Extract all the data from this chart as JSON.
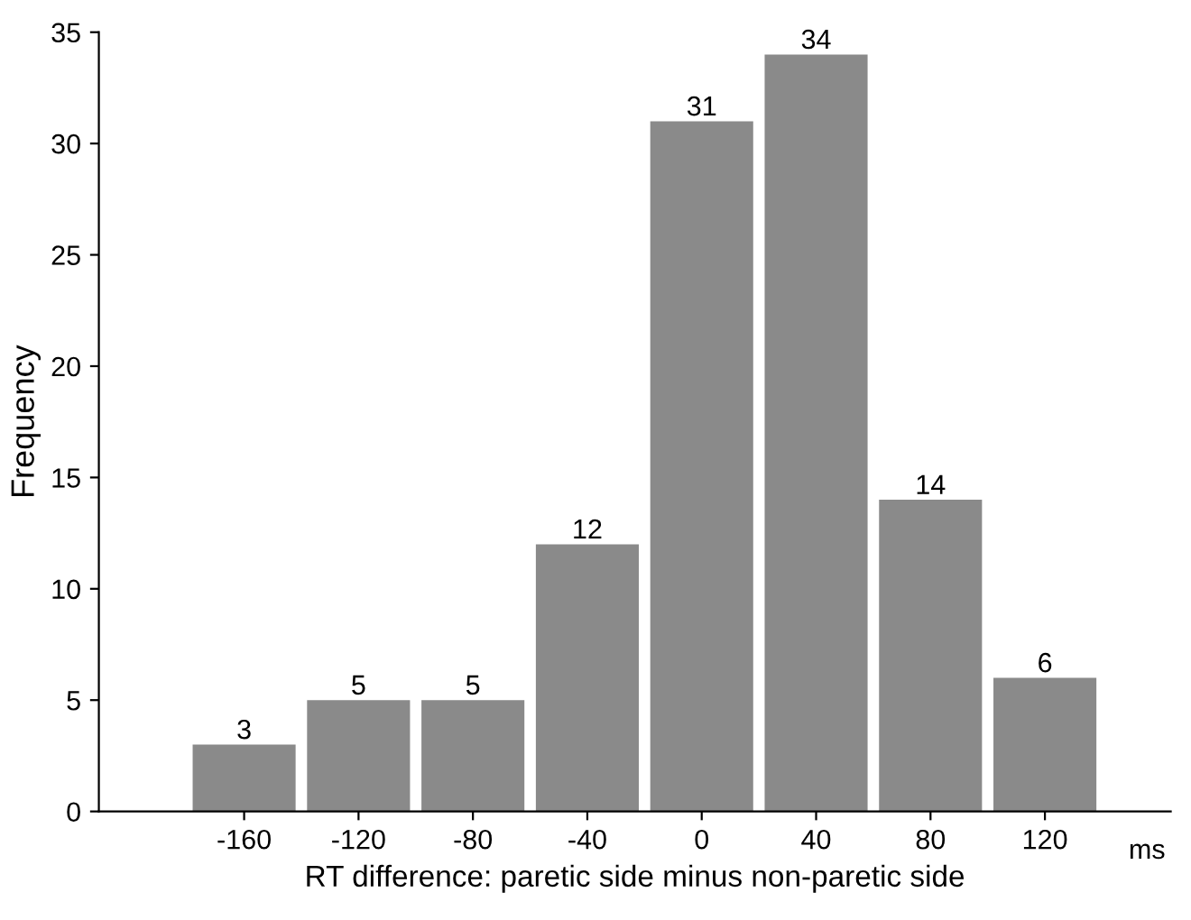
{
  "chart_data": {
    "type": "bar",
    "xlabel": "RT difference: paretic side minus non-paretic side",
    "ylabel": "Frequency",
    "categories": [
      "-160",
      "-120",
      "-80",
      "-40",
      "0",
      "40",
      "80",
      "120"
    ],
    "values": [
      3,
      5,
      5,
      12,
      31,
      34,
      14,
      6
    ],
    "color": "#8a8a8a",
    "ylim": [
      0,
      35
    ],
    "yticks": [
      0,
      5,
      10,
      15,
      20,
      25,
      30,
      35
    ],
    "data_labels": true,
    "grid": false,
    "annotations": [
      "ms"
    ]
  }
}
